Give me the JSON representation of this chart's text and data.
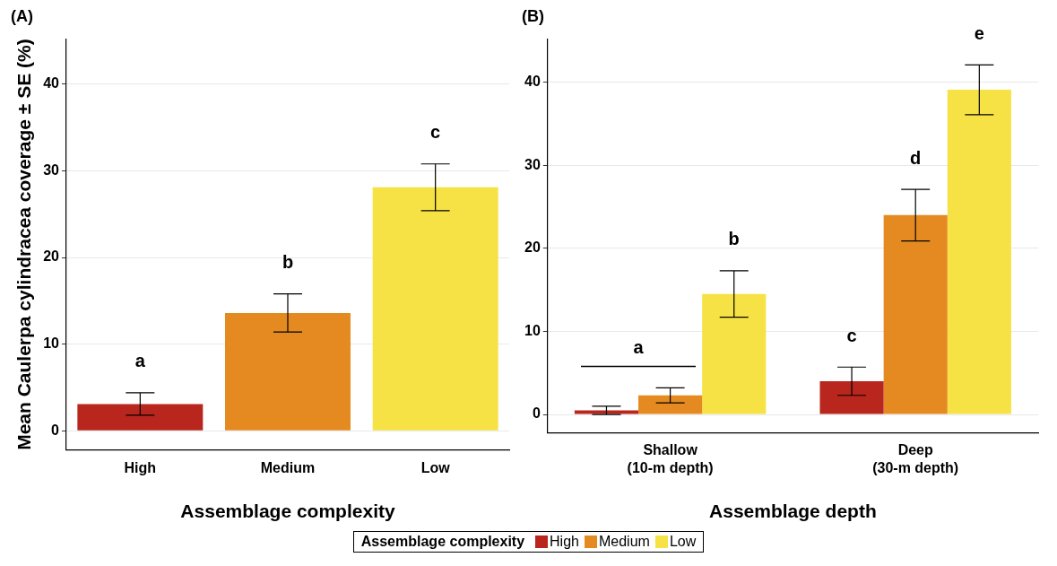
{
  "chart_data": [
    {
      "type": "bar",
      "title": "(A)",
      "xlabel": "Assemblage complexity",
      "ylabel": "Mean Caulerpa cylindracea coverage ± SE (%)",
      "categories": [
        "High",
        "Medium",
        "Low"
      ],
      "values": [
        3.1,
        13.6,
        28.1
      ],
      "errors": [
        1.3,
        2.2,
        2.7
      ],
      "colors": [
        "#b8261e",
        "#e58a21",
        "#f6e244"
      ],
      "ylim": [
        -2.2,
        45.2
      ],
      "yticks": [
        0,
        10,
        20,
        30,
        40
      ],
      "grid": "y",
      "annotations": [
        "a",
        "b",
        "c"
      ]
    },
    {
      "type": "bar",
      "title": "(B)",
      "xlabel": "Assemblage depth",
      "legend_title": "Assemblage complexity",
      "legend": "bottom",
      "categories": [
        "Shallow\n(10-m depth)",
        "Deep\n(30-m depth)"
      ],
      "series": [
        {
          "name": "High",
          "color": "#b8261e",
          "values": [
            0.5,
            4.0
          ],
          "errors": [
            0.5,
            1.7
          ]
        },
        {
          "name": "Medium",
          "color": "#e58a21",
          "values": [
            2.3,
            24.0
          ],
          "errors": [
            0.9,
            3.1
          ]
        },
        {
          "name": "Low",
          "color": "#f6e244",
          "values": [
            14.5,
            39.1
          ],
          "errors": [
            2.8,
            3.0
          ]
        }
      ],
      "ylim": [
        -2.2,
        45.2
      ],
      "yticks": [
        0,
        10,
        20,
        30,
        40
      ],
      "grid": "y",
      "annotations": [
        "a",
        "b",
        "c",
        "d",
        "e"
      ]
    }
  ]
}
